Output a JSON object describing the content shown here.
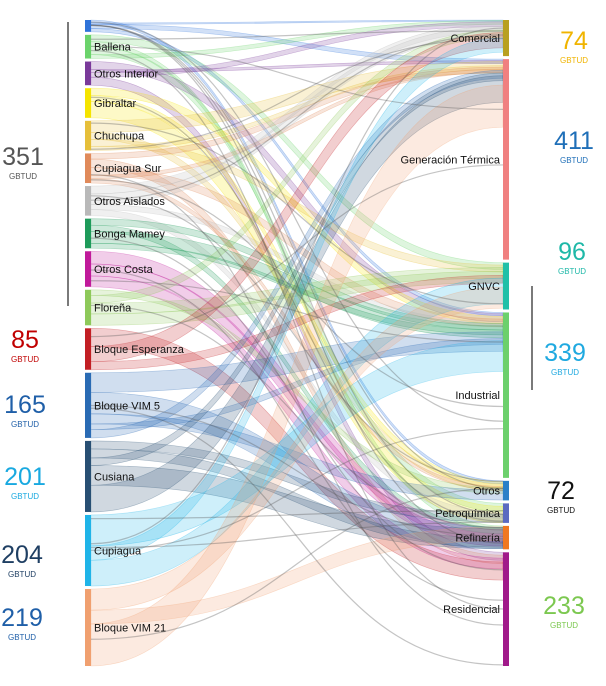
{
  "sources": [
    {
      "name": "",
      "value": 2,
      "color": "#2f73d9"
    },
    {
      "name": "Ballena",
      "value": 4,
      "color": "#6bd36b"
    },
    {
      "name": "Otros Interior",
      "value": 4,
      "color": "#7a3a9a"
    },
    {
      "name": "Gibraltar",
      "value": 5,
      "color": "#f5e400"
    },
    {
      "name": "Chuchupa",
      "value": 5,
      "color": "#e6bf3a"
    },
    {
      "name": "Cupiagua Sur",
      "value": 5,
      "color": "#e08a5a"
    },
    {
      "name": "Otros Aislados",
      "value": 5,
      "color": "#b9b9b9"
    },
    {
      "name": "Bonga Mamey",
      "value": 5,
      "color": "#1e9b5a"
    },
    {
      "name": "Otros Costa",
      "value": 6,
      "color": "#c01a9a"
    },
    {
      "name": "Floreña",
      "value": 6,
      "color": "#8ec95a"
    },
    {
      "name": "Bloque Esperanza",
      "value": 7,
      "color": "#c21f24"
    },
    {
      "name": "Bloque VIM 5",
      "value": 11,
      "color": "#2a6bb4"
    },
    {
      "name": "Cusiana",
      "value": 12,
      "color": "#284f73"
    },
    {
      "name": "Cupiagua",
      "value": 12,
      "color": "#1fb4e8"
    },
    {
      "name": "Bloque VIM 21",
      "value": 13,
      "color": "#f0a070"
    }
  ],
  "targets": [
    {
      "name": "Comercial",
      "value": 74,
      "color": "#b8a020"
    },
    {
      "name": "Generación Térmica",
      "value": 411,
      "color": "#f08080"
    },
    {
      "name": "GNVC",
      "value": 96,
      "color": "#20c0a8"
    },
    {
      "name": "Industrial",
      "value": 339,
      "color": "#6cd06c"
    },
    {
      "name": "Otros",
      "value": 40,
      "color": "#2a80c8"
    },
    {
      "name": "Petroquímica",
      "value": 40,
      "color": "#5a6ac0"
    },
    {
      "name": "Refinería",
      "value": 48,
      "color": "#f07820"
    },
    {
      "name": "Residencial",
      "value": 233,
      "color": "#a01a8a"
    }
  ],
  "left_stats": [
    {
      "value": "351",
      "unit": "GBTUD",
      "color": "#555555"
    },
    {
      "value": "85",
      "unit": "GBTUD",
      "color": "#c00000"
    },
    {
      "value": "165",
      "unit": "GBTUD",
      "color": "#1f5fa8"
    },
    {
      "value": "201",
      "unit": "GBTUD",
      "color": "#19a9e0"
    },
    {
      "value": "204",
      "unit": "GBTUD",
      "color": "#1f3f63"
    },
    {
      "value": "219",
      "unit": "GBTUD",
      "color": "#1f5fa8"
    }
  ],
  "right_stats": [
    {
      "value": "74",
      "unit": "GBTUD",
      "color": "#f0b400"
    },
    {
      "value": "411",
      "unit": "GBTUD",
      "color": "#1f6fb8"
    },
    {
      "value": "96",
      "unit": "GBTUD",
      "color": "#1fb8a8"
    },
    {
      "value": "339",
      "unit": "GBTUD",
      "color": "#1fa9e0"
    },
    {
      "value": "72",
      "unit": "GBTUD",
      "color": "#111111"
    },
    {
      "value": "233",
      "unit": "GBTUD",
      "color": "#7cc850"
    }
  ]
}
